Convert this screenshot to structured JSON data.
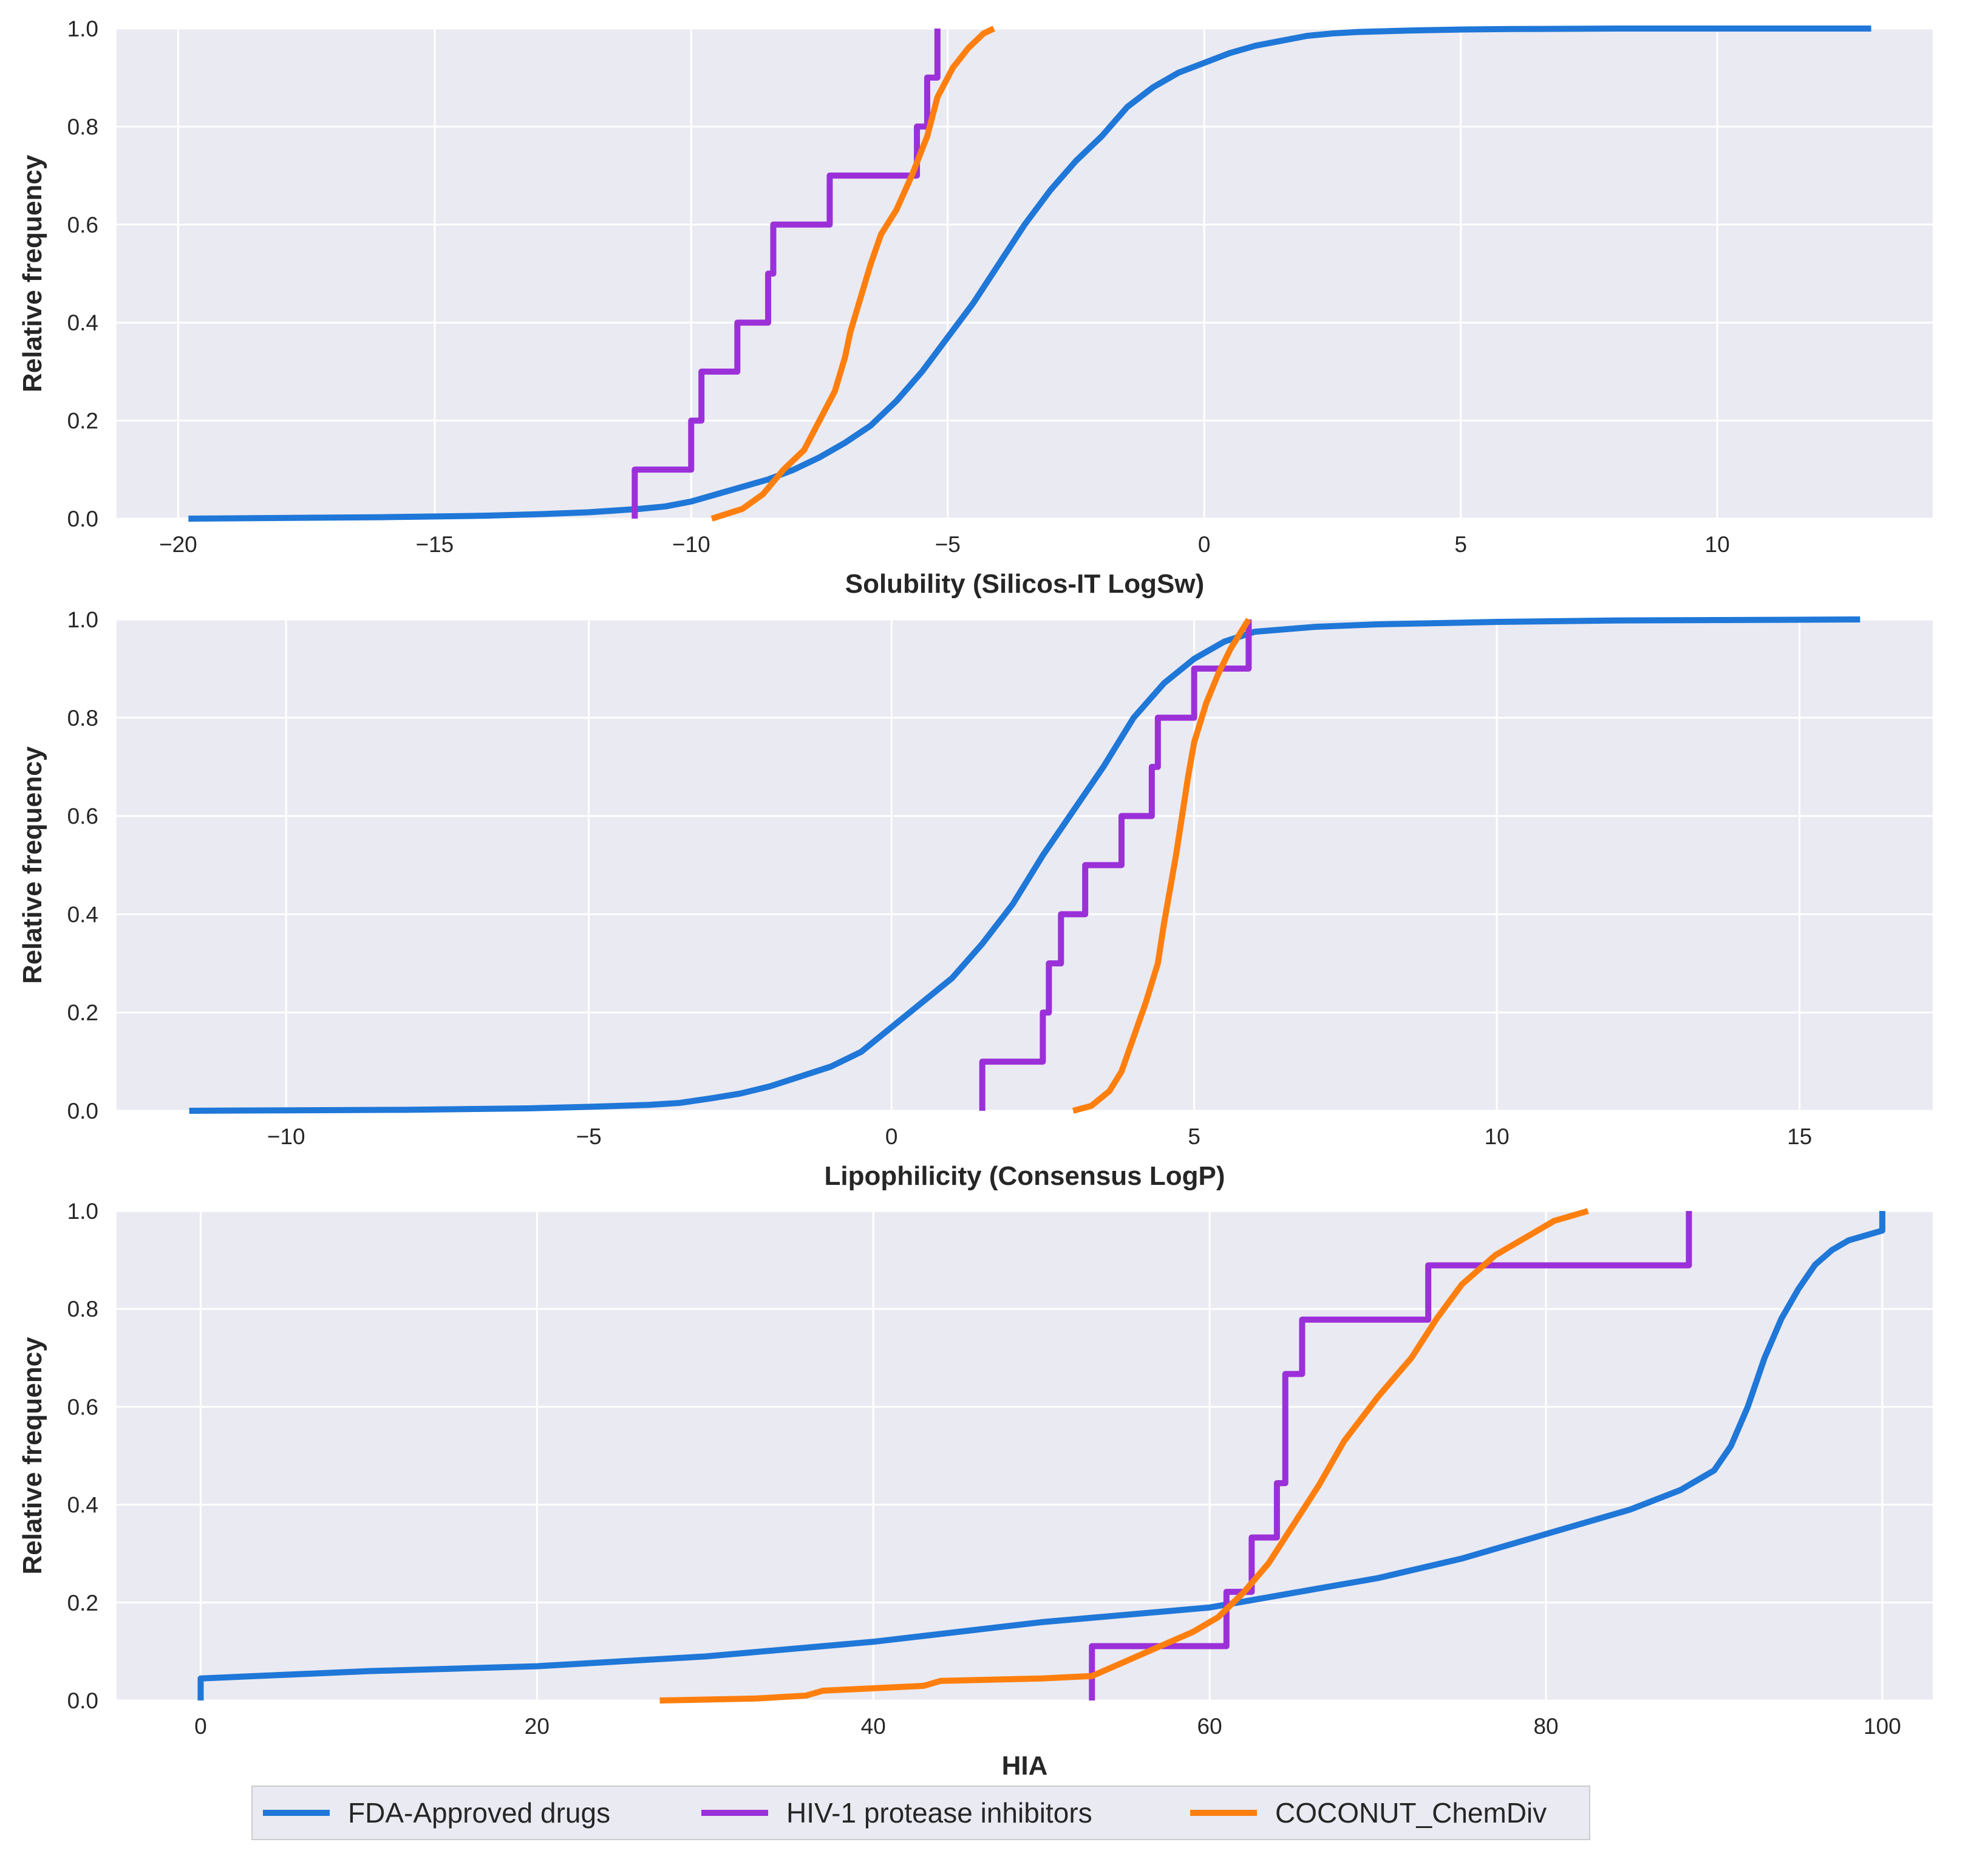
{
  "colors": {
    "background": "#eaeaf2",
    "grid": "#ffffff",
    "fda": "#1f77d8",
    "hiv": "#9b30d9",
    "coconut": "#ff7f0e"
  },
  "legend": {
    "location": "bottom-center",
    "entries": [
      {
        "name": "FDA-Approved drugs",
        "color_key": "fda"
      },
      {
        "name": "HIV-1 protease inhibitors",
        "color_key": "hiv"
      },
      {
        "name": "COCONUT_ChemDiv",
        "color_key": "coconut"
      }
    ]
  },
  "chart_data": [
    {
      "type": "line",
      "subtype": "ecdf",
      "xlabel": "Solubility (Silicos-IT LogSw)",
      "ylabel": "Relative frequency",
      "xlim": [
        -21.2,
        14.2
      ],
      "ylim": [
        0,
        1
      ],
      "xticks": [
        -20,
        -15,
        -10,
        -5,
        0,
        5,
        10
      ],
      "xticklabels": [
        "−20",
        "−15",
        "−10",
        "−5",
        "0",
        "5",
        "10"
      ],
      "yticks": [
        0,
        0.2,
        0.4,
        0.6,
        0.8,
        1.0
      ],
      "yticklabels": [
        "0.0",
        "0.2",
        "0.4",
        "0.6",
        "0.8",
        "1.0"
      ],
      "grid": true,
      "series": [
        {
          "name": "FDA-Approved drugs",
          "key": "fda",
          "step": false,
          "x": [
            -19.8,
            -16,
            -14,
            -13,
            -12,
            -11,
            -10.5,
            -10,
            -9.5,
            -9,
            -8.5,
            -8,
            -7.5,
            -7,
            -6.5,
            -6,
            -5.5,
            -5,
            -4.5,
            -4,
            -3.5,
            -3,
            -2.5,
            -2,
            -1.5,
            -1,
            -0.5,
            0,
            0.5,
            1,
            1.5,
            2,
            2.5,
            3,
            4,
            5,
            6,
            8,
            10,
            13
          ],
          "y": [
            0,
            0.003,
            0.006,
            0.009,
            0.013,
            0.02,
            0.025,
            0.035,
            0.05,
            0.065,
            0.08,
            0.1,
            0.125,
            0.155,
            0.19,
            0.24,
            0.3,
            0.37,
            0.44,
            0.52,
            0.6,
            0.67,
            0.73,
            0.78,
            0.84,
            0.88,
            0.91,
            0.93,
            0.95,
            0.965,
            0.975,
            0.985,
            0.99,
            0.993,
            0.996,
            0.998,
            0.999,
            1.0,
            1.0,
            1.0
          ]
        },
        {
          "name": "HIV-1 protease inhibitors",
          "key": "hiv",
          "step": true,
          "x": [
            -11.1,
            -10.0,
            -9.8,
            -9.1,
            -8.5,
            -8.4,
            -7.3,
            -5.6,
            -5.4,
            -5.2
          ],
          "y": [
            0.1,
            0.2,
            0.3,
            0.4,
            0.5,
            0.6,
            0.7,
            0.8,
            0.9,
            1.0
          ]
        },
        {
          "name": "COCONUT_ChemDiv",
          "key": "coconut",
          "step": false,
          "x": [
            -9.6,
            -9.0,
            -8.6,
            -8.2,
            -7.8,
            -7.5,
            -7.2,
            -7.0,
            -6.9,
            -6.7,
            -6.5,
            -6.3,
            -6.0,
            -5.7,
            -5.4,
            -5.2,
            -4.9,
            -4.6,
            -4.3,
            -4.1
          ],
          "y": [
            0,
            0.02,
            0.05,
            0.1,
            0.14,
            0.2,
            0.26,
            0.33,
            0.38,
            0.45,
            0.52,
            0.58,
            0.63,
            0.7,
            0.78,
            0.86,
            0.92,
            0.96,
            0.99,
            1.0
          ]
        }
      ]
    },
    {
      "type": "line",
      "subtype": "ecdf",
      "xlabel": "Lipophilicity (Consensus LogP)",
      "ylabel": "Relative frequency",
      "xlim": [
        -12.8,
        17.2
      ],
      "ylim": [
        0,
        1
      ],
      "xticks": [
        -10,
        -5,
        0,
        5,
        10,
        15
      ],
      "xticklabels": [
        "−10",
        "−5",
        "0",
        "5",
        "10",
        "15"
      ],
      "yticks": [
        0,
        0.2,
        0.4,
        0.6,
        0.8,
        1.0
      ],
      "yticklabels": [
        "0.0",
        "0.2",
        "0.4",
        "0.6",
        "0.8",
        "1.0"
      ],
      "grid": true,
      "series": [
        {
          "name": "FDA-Approved drugs",
          "key": "fda",
          "step": false,
          "x": [
            -11.6,
            -8,
            -6,
            -5,
            -4,
            -3.5,
            -3,
            -2.5,
            -2,
            -1.5,
            -1,
            -0.5,
            0,
            0.5,
            1,
            1.5,
            2,
            2.5,
            3,
            3.5,
            4,
            4.5,
            5,
            5.5,
            6,
            7,
            8,
            10,
            12,
            16
          ],
          "y": [
            0,
            0.002,
            0.005,
            0.008,
            0.012,
            0.016,
            0.025,
            0.035,
            0.05,
            0.07,
            0.09,
            0.12,
            0.17,
            0.22,
            0.27,
            0.34,
            0.42,
            0.52,
            0.61,
            0.7,
            0.8,
            0.87,
            0.92,
            0.955,
            0.975,
            0.985,
            0.99,
            0.995,
            0.998,
            1.0
          ]
        },
        {
          "name": "HIV-1 protease inhibitors",
          "key": "hiv",
          "step": true,
          "x": [
            1.5,
            2.5,
            2.6,
            2.8,
            3.2,
            3.8,
            4.3,
            4.4,
            5.0,
            5.9
          ],
          "y": [
            0.1,
            0.2,
            0.3,
            0.4,
            0.5,
            0.6,
            0.7,
            0.8,
            0.9,
            1.0
          ]
        },
        {
          "name": "COCONUT_ChemDiv",
          "key": "coconut",
          "step": false,
          "x": [
            3.0,
            3.3,
            3.6,
            3.8,
            4.0,
            4.2,
            4.4,
            4.5,
            4.6,
            4.7,
            4.8,
            4.9,
            5.0,
            5.2,
            5.4,
            5.6,
            5.8,
            5.9
          ],
          "y": [
            0,
            0.01,
            0.04,
            0.08,
            0.15,
            0.22,
            0.3,
            0.38,
            0.45,
            0.52,
            0.6,
            0.68,
            0.75,
            0.83,
            0.89,
            0.94,
            0.98,
            1.0
          ]
        }
      ]
    },
    {
      "type": "line",
      "subtype": "ecdf",
      "xlabel": "HIA",
      "ylabel": "Relative frequency",
      "xlim": [
        -5,
        103
      ],
      "ylim": [
        0,
        1
      ],
      "xticks": [
        0,
        20,
        40,
        60,
        80,
        100
      ],
      "xticklabels": [
        "0",
        "20",
        "40",
        "60",
        "80",
        "100"
      ],
      "yticks": [
        0,
        0.2,
        0.4,
        0.6,
        0.8,
        1.0
      ],
      "yticklabels": [
        "0.0",
        "0.2",
        "0.4",
        "0.6",
        "0.8",
        "1.0"
      ],
      "grid": true,
      "series": [
        {
          "name": "FDA-Approved drugs",
          "key": "fda",
          "step": false,
          "x": [
            0,
            0,
            10,
            20,
            30,
            40,
            50,
            60,
            65,
            70,
            75,
            80,
            85,
            88,
            90,
            91,
            92,
            93,
            94,
            95,
            96,
            97,
            98,
            99,
            100,
            100
          ],
          "y": [
            0,
            0.045,
            0.06,
            0.07,
            0.09,
            0.12,
            0.16,
            0.19,
            0.22,
            0.25,
            0.29,
            0.34,
            0.39,
            0.43,
            0.47,
            0.52,
            0.6,
            0.7,
            0.78,
            0.84,
            0.89,
            0.92,
            0.94,
            0.95,
            0.96,
            1.0
          ]
        },
        {
          "name": "HIV-1 protease inhibitors",
          "key": "hiv",
          "step": true,
          "x": [
            53.0,
            61.0,
            62.5,
            64.0,
            64.5,
            65.5,
            73.0,
            88.5,
            88.5
          ],
          "y": [
            0.111,
            0.222,
            0.333,
            0.444,
            0.667,
            0.778,
            0.889,
            0.889,
            1.0
          ]
        },
        {
          "name": "COCONUT_ChemDiv",
          "key": "coconut",
          "step": false,
          "x": [
            27.3,
            33,
            36,
            37,
            43,
            44,
            50,
            53,
            55,
            57,
            59,
            60.5,
            62,
            63.5,
            65,
            66.5,
            68,
            70,
            72,
            73.5,
            75,
            77,
            79,
            80.5,
            82.5
          ],
          "y": [
            0,
            0.004,
            0.01,
            0.02,
            0.03,
            0.04,
            0.045,
            0.05,
            0.08,
            0.11,
            0.14,
            0.17,
            0.22,
            0.28,
            0.36,
            0.44,
            0.53,
            0.62,
            0.7,
            0.78,
            0.85,
            0.91,
            0.95,
            0.98,
            1.0
          ]
        }
      ]
    }
  ]
}
